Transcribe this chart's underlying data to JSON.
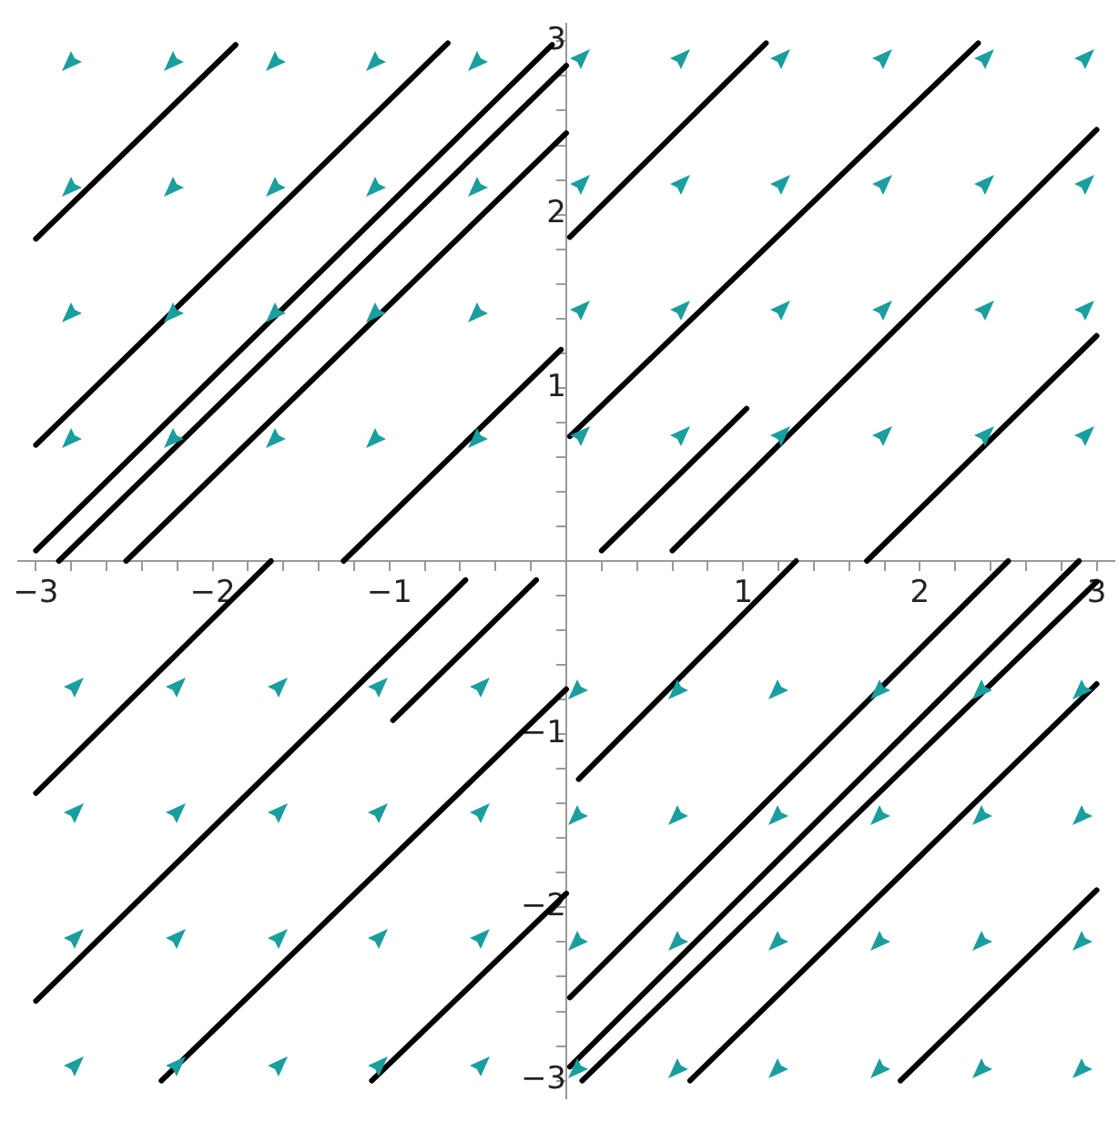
{
  "chart_data": {
    "type": "line",
    "xlim": [
      -3.1,
      3.1
    ],
    "ylim": [
      -3.1,
      3.1
    ],
    "xticks": [
      -3,
      {
        "value": -2.8,
        "label": null
      },
      {
        "value": -2.6,
        "label": null
      },
      {
        "value": -2.4,
        "label": null
      },
      {
        "value": -2.2,
        "label": null
      },
      -2,
      {
        "value": -1.8,
        "label": null
      },
      {
        "value": -1.6,
        "label": null
      },
      {
        "value": -1.4,
        "label": null
      },
      {
        "value": -1.2,
        "label": null
      },
      -1,
      {
        "value": -0.8,
        "label": null
      },
      {
        "value": -0.6,
        "label": null
      },
      {
        "value": -0.4,
        "label": null
      },
      {
        "value": -0.2,
        "label": null
      },
      {
        "value": 0.2,
        "label": null
      },
      {
        "value": 0.4,
        "label": null
      },
      {
        "value": 0.6,
        "label": null
      },
      {
        "value": 0.8,
        "label": null
      },
      1,
      {
        "value": 1.2,
        "label": null
      },
      {
        "value": 1.4,
        "label": null
      },
      {
        "value": 1.6,
        "label": null
      },
      {
        "value": 1.8,
        "label": null
      },
      2,
      {
        "value": 2.2,
        "label": null
      },
      {
        "value": 2.4,
        "label": null
      },
      {
        "value": 2.6,
        "label": null
      },
      {
        "value": 2.8,
        "label": null
      },
      3
    ],
    "yticks": [
      -3,
      {
        "value": -2.8,
        "label": null
      },
      {
        "value": -2.6,
        "label": null
      },
      {
        "value": -2.4,
        "label": null
      },
      {
        "value": -2.2,
        "label": null
      },
      -2,
      {
        "value": -1.8,
        "label": null
      },
      {
        "value": -1.6,
        "label": null
      },
      {
        "value": -1.4,
        "label": null
      },
      {
        "value": -1.2,
        "label": null
      },
      -1,
      {
        "value": -0.8,
        "label": null
      },
      {
        "value": -0.6,
        "label": null
      },
      {
        "value": -0.4,
        "label": null
      },
      {
        "value": -0.2,
        "label": null
      },
      {
        "value": 0.2,
        "label": null
      },
      {
        "value": 0.4,
        "label": null
      },
      {
        "value": 0.6,
        "label": null
      },
      {
        "value": 0.8,
        "label": null
      },
      1,
      {
        "value": 1.2,
        "label": null
      },
      {
        "value": 1.4,
        "label": null
      },
      {
        "value": 1.6,
        "label": null
      },
      {
        "value": 1.8,
        "label": null
      },
      2,
      {
        "value": 2.2,
        "label": null
      },
      {
        "value": 2.4,
        "label": null
      },
      {
        "value": 2.6,
        "label": null
      },
      {
        "value": 2.8,
        "label": null
      },
      3
    ],
    "series": [
      {
        "color": "#000000",
        "x": [
          -3.0,
          -1.87
        ],
        "values": [
          1.86,
          2.98
        ]
      },
      {
        "color": "#000000",
        "x": [
          -3.0,
          -0.67
        ],
        "values": [
          0.67,
          2.99
        ]
      },
      {
        "color": "#000000",
        "x": [
          -3.0,
          -0.08
        ],
        "values": [
          0.06,
          2.98
        ]
      },
      {
        "color": "#000000",
        "x": [
          -2.87,
          0
        ],
        "values": [
          0,
          2.86
        ]
      },
      {
        "color": "#000000",
        "x": [
          -2.49,
          0
        ],
        "values": [
          0,
          2.47
        ]
      },
      {
        "color": "#000000",
        "x": [
          -1.26,
          -0.03
        ],
        "values": [
          0,
          1.22
        ]
      },
      {
        "color": "#000000",
        "x": [
          0.02,
          1.13
        ],
        "values": [
          1.87,
          2.99
        ]
      },
      {
        "color": "#000000",
        "x": [
          0.02,
          2.33
        ],
        "values": [
          0.72,
          2.99
        ]
      },
      {
        "color": "#000000",
        "x": [
          0.6,
          3.0
        ],
        "values": [
          0.06,
          2.49
        ]
      },
      {
        "color": "#000000",
        "x": [
          0.2,
          1.02
        ],
        "values": [
          0.06,
          0.88
        ]
      },
      {
        "color": "#000000",
        "x": [
          1.7,
          3.0
        ],
        "values": [
          0,
          1.3
        ]
      },
      {
        "color": "#000000",
        "x": [
          -3.0,
          -1.67
        ],
        "values": [
          -1.34,
          0
        ]
      },
      {
        "color": "#000000",
        "x": [
          -3.0,
          -0.57
        ],
        "values": [
          -2.54,
          -0.11
        ]
      },
      {
        "color": "#000000",
        "x": [
          -2.29,
          0
        ],
        "values": [
          -3.0,
          -0.74
        ]
      },
      {
        "color": "#000000",
        "x": [
          -0.98,
          -0.17
        ],
        "values": [
          -0.92,
          -0.11
        ]
      },
      {
        "color": "#000000",
        "x": [
          -1.1,
          0
        ],
        "values": [
          -3.0,
          -1.92
        ]
      },
      {
        "color": "#000000",
        "x": [
          0.07,
          1.3
        ],
        "values": [
          -1.26,
          0
        ]
      },
      {
        "color": "#000000",
        "x": [
          0.02,
          2.5
        ],
        "values": [
          -2.52,
          0
        ]
      },
      {
        "color": "#000000",
        "x": [
          0.02,
          2.9
        ],
        "values": [
          -2.92,
          0
        ]
      },
      {
        "color": "#000000",
        "x": [
          0.09,
          3.0
        ],
        "values": [
          -3.0,
          -0.12
        ]
      },
      {
        "color": "#000000",
        "x": [
          0.7,
          3.0
        ],
        "values": [
          -3.0,
          -0.71
        ]
      },
      {
        "color": "#000000",
        "x": [
          1.89,
          3.0
        ],
        "values": [
          -3.0,
          -1.9
        ]
      }
    ]
  }
}
